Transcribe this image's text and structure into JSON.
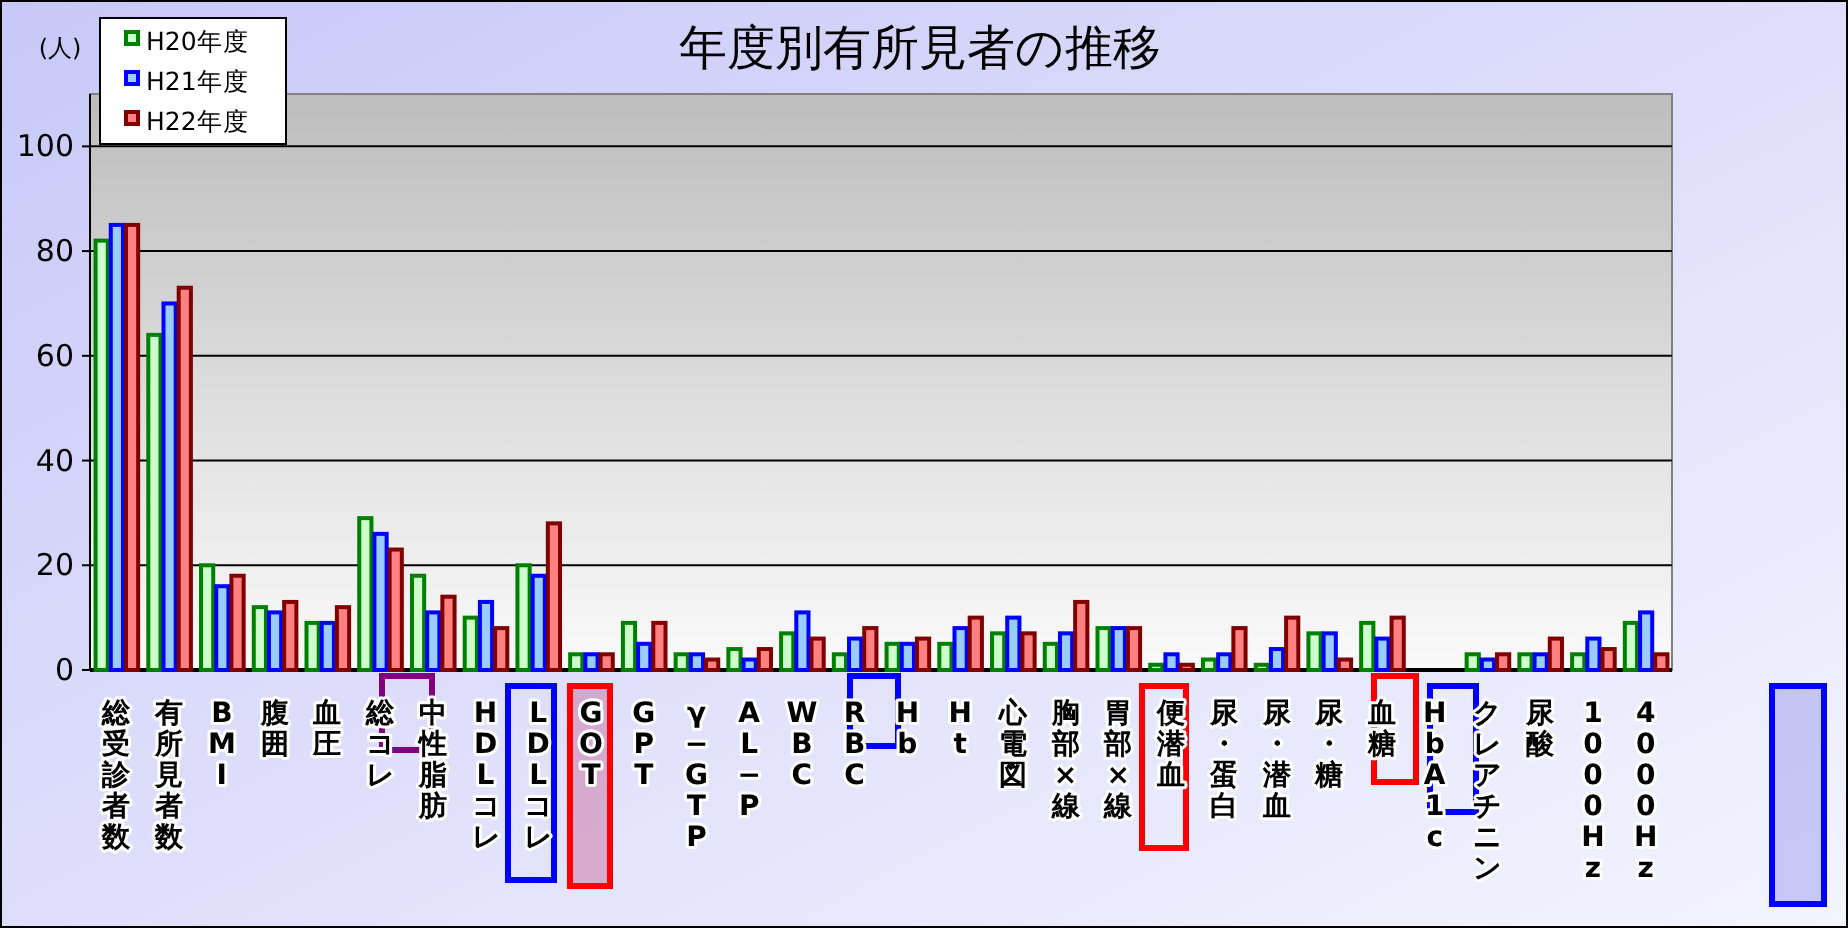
{
  "chart_data": {
    "type": "bar",
    "title": "年度別有所見者の推移",
    "ylabel": "(人)",
    "categories": [
      "総受診者数",
      "有所見者数",
      "BMI",
      "腹囲",
      "血圧",
      "総コレ",
      "中性脂肪",
      "HDLコレ",
      "LDLコレ",
      "GOT",
      "GPT",
      "γ−GTP",
      "AL−P",
      "WBC",
      "RBC",
      "Hb",
      "Ht",
      "心電図",
      "胸部×線",
      "胃部×線",
      "便潜血",
      "尿・蛋白",
      "尿・潜血",
      "尿・糖",
      "血糖",
      "HbA1c",
      "クレアチニン",
      "尿酸",
      "1000Hz",
      "4000Hz"
    ],
    "series": [
      {
        "name": "H20年度",
        "color": "#ccffcc",
        "values": [
          82,
          64,
          20,
          12,
          9,
          29,
          18,
          10,
          20,
          3,
          9,
          3,
          4,
          7,
          3,
          5,
          5,
          7,
          5,
          8,
          1,
          2,
          1,
          7,
          9,
          null,
          3,
          3,
          3,
          9
        ]
      },
      {
        "name": "H21年度",
        "color": "#99ccff",
        "values": [
          85,
          70,
          16,
          11,
          9,
          26,
          11,
          13,
          18,
          3,
          5,
          3,
          2,
          11,
          6,
          5,
          8,
          10,
          7,
          8,
          3,
          3,
          4,
          7,
          6,
          null,
          2,
          3,
          6,
          11
        ]
      },
      {
        "name": "H22年度",
        "color": "#ff8080",
        "values": [
          85,
          73,
          18,
          13,
          12,
          23,
          14,
          8,
          28,
          3,
          9,
          2,
          4,
          6,
          8,
          6,
          10,
          7,
          13,
          8,
          1,
          8,
          10,
          2,
          10,
          null,
          3,
          6,
          4,
          3
        ]
      }
    ],
    "ylim": [
      0,
      110
    ],
    "yticks": [
      0,
      20,
      40,
      60,
      80,
      100
    ],
    "grid": "y",
    "legend": "top left"
  }
}
